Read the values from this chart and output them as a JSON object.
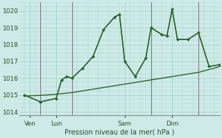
{
  "xlabel": "Pression niveau de la mer( hPa )",
  "ylim": [
    1013.8,
    1020.5
  ],
  "yticks": [
    1014,
    1015,
    1016,
    1017,
    1018,
    1019,
    1020
  ],
  "background_color": "#ceeae7",
  "grid_color": "#a8d5cc",
  "line_color": "#2a5e2a",
  "font_color": "#2a4a2a",
  "day_labels": [
    "Ven",
    "Lun",
    "Sam",
    "Dim"
  ],
  "day_positions": [
    0.5,
    3.0,
    9.5,
    14.0
  ],
  "vline_positions": [
    1.5,
    4.5,
    12.0,
    16.5
  ],
  "xlim": [
    -0.5,
    18.5
  ],
  "series": [
    {
      "x": [
        0,
        1.5,
        3.0,
        3.5,
        4.0,
        4.5,
        5.5,
        6.5,
        7.5,
        8.5,
        9.0,
        9.5,
        10.5,
        11.5,
        12.0,
        13.0,
        13.5,
        14.0,
        14.5,
        15.5,
        16.5,
        17.5,
        18.5
      ],
      "y": [
        1015.0,
        1014.6,
        1014.8,
        1015.9,
        1016.1,
        1016.0,
        1016.6,
        1017.3,
        1018.9,
        1019.6,
        1019.8,
        1017.0,
        1016.1,
        1017.2,
        1019.0,
        1018.6,
        1018.5,
        1020.1,
        1018.3,
        1018.3,
        1018.7,
        1016.7,
        1016.8
      ]
    },
    {
      "x": [
        0,
        1.5,
        3.0,
        3.5,
        4.0,
        4.5,
        5.5,
        6.5,
        7.5,
        8.5,
        9.0,
        9.5,
        10.5,
        11.5,
        12.0,
        13.0,
        13.5,
        14.0,
        14.5,
        15.5,
        16.5,
        17.5,
        18.5
      ],
      "y": [
        1015.0,
        1014.6,
        1014.8,
        1015.9,
        1016.1,
        1016.0,
        1016.6,
        1017.3,
        1018.9,
        1019.6,
        1019.8,
        1017.0,
        1016.1,
        1017.2,
        1019.0,
        1018.6,
        1018.5,
        1020.1,
        1018.3,
        1018.3,
        1018.7,
        1016.7,
        1016.8
      ]
    },
    {
      "x": [
        0,
        1.5,
        3.0,
        4.5,
        6.0,
        7.5,
        9.0,
        10.5,
        12.0,
        13.5,
        15.0,
        16.5,
        18.0,
        18.5
      ],
      "y": [
        1014.95,
        1014.98,
        1015.05,
        1015.15,
        1015.3,
        1015.45,
        1015.6,
        1015.75,
        1015.9,
        1016.05,
        1016.2,
        1016.35,
        1016.6,
        1016.7
      ]
    }
  ]
}
